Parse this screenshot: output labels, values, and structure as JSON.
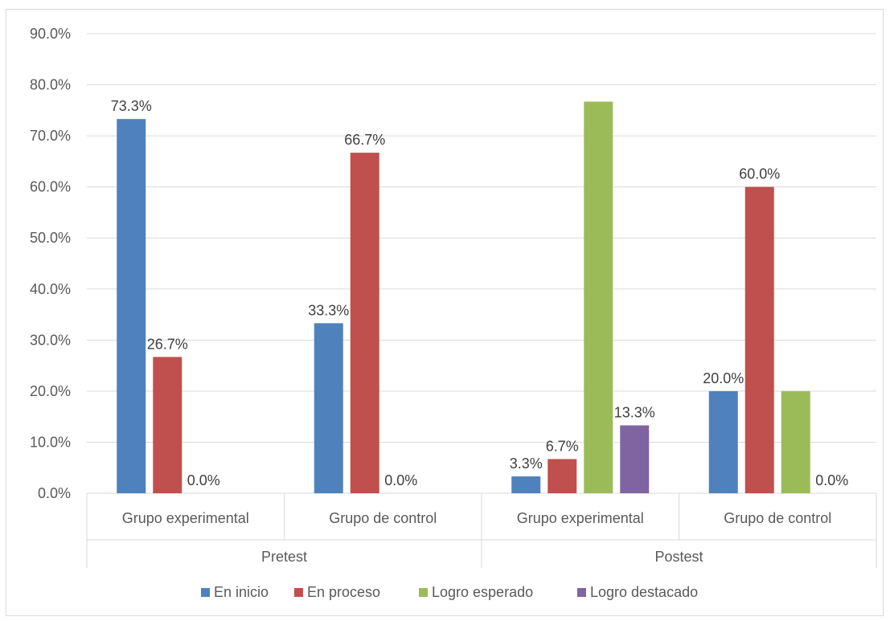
{
  "chart_data": {
    "type": "bar",
    "title": "",
    "xlabel": "",
    "ylabel": "",
    "ylim": [
      0,
      90
    ],
    "y_ticks": [
      "0.0%",
      "10.0%",
      "20.0%",
      "30.0%",
      "40.0%",
      "50.0%",
      "60.0%",
      "70.0%",
      "80.0%",
      "90.0%"
    ],
    "grid": true,
    "legend_position": "bottom",
    "groups": [
      {
        "name": "Pretest",
        "categories": [
          "Grupo experimental",
          "Grupo de control"
        ]
      },
      {
        "name": "Postest",
        "categories": [
          "Grupo experimental",
          "Grupo de control"
        ]
      }
    ],
    "series": [
      {
        "name": "En inicio",
        "color": "#4F81BD",
        "values": [
          73.3,
          33.3,
          3.3,
          20.0
        ],
        "labels": [
          "73.3%",
          "33.3%",
          "3.3%",
          "20.0%"
        ]
      },
      {
        "name": "En proceso",
        "color": "#C0504D",
        "values": [
          26.7,
          66.7,
          6.7,
          60.0
        ],
        "labels": [
          "26.7%",
          "66.7%",
          "6.7%",
          "60.0%"
        ]
      },
      {
        "name": "Logro esperado",
        "color": "#9BBB59",
        "values": [
          0.0,
          0.0,
          76.7,
          20.0
        ],
        "labels": [
          "0.0%",
          "0.0%",
          null,
          null
        ]
      },
      {
        "name": "Logro destacado",
        "color": "#8064A2",
        "values": [
          null,
          null,
          13.3,
          0.0
        ],
        "labels": [
          null,
          null,
          "13.3%",
          "0.0%"
        ]
      }
    ]
  }
}
